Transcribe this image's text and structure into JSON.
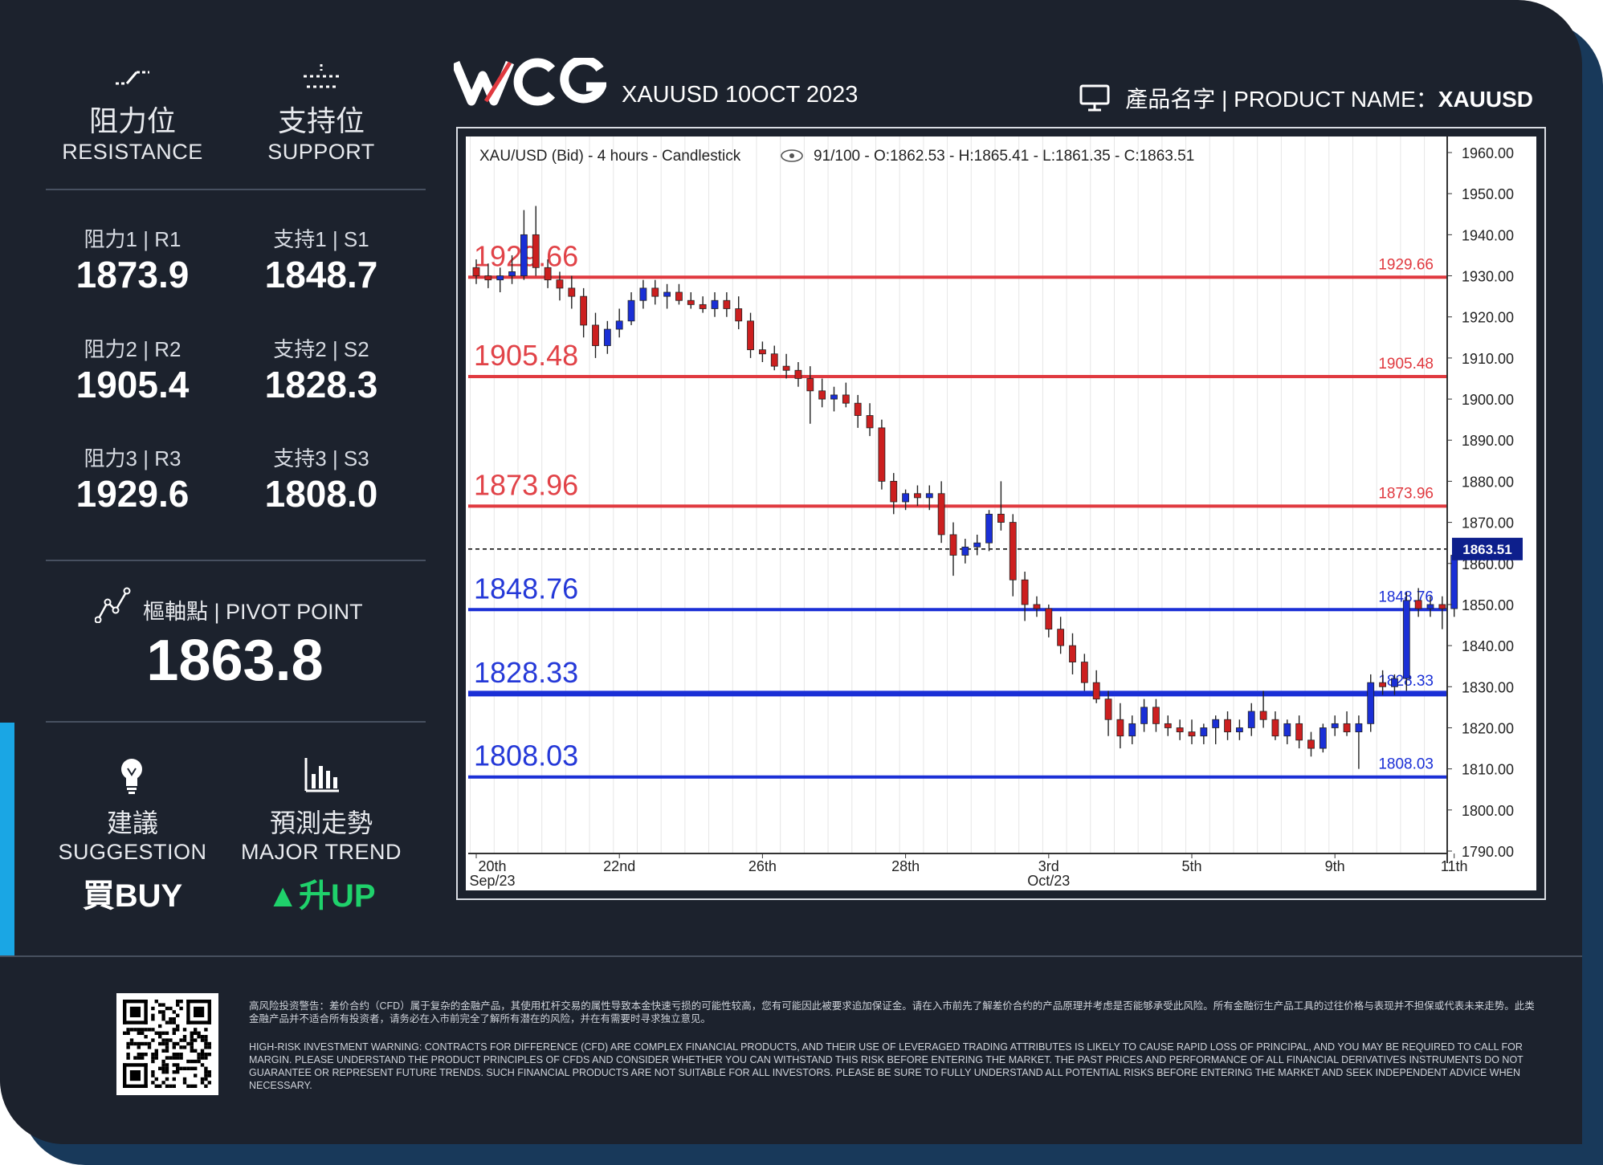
{
  "header": {
    "brand": "WCG",
    "title": "XAUUSD 10OCT 2023",
    "product_zh": "產品名字",
    "product_en": "PRODUCT NAME：",
    "product_value": "XAUUSD"
  },
  "resistance": {
    "label_zh": "阻力位",
    "label_en": "RESISTANCE"
  },
  "support": {
    "label_zh": "支持位",
    "label_en": "SUPPORT"
  },
  "levels": {
    "r1": {
      "label": "阻力1 | R1",
      "value": "1873.9"
    },
    "r2": {
      "label": "阻力2 | R2",
      "value": "1905.4"
    },
    "r3": {
      "label": "阻力3 | R3",
      "value": "1929.6"
    },
    "s1": {
      "label": "支持1 | S1",
      "value": "1848.7"
    },
    "s2": {
      "label": "支持2 | S2",
      "value": "1828.3"
    },
    "s3": {
      "label": "支持3 | S3",
      "value": "1808.0"
    }
  },
  "pivot": {
    "label_zh": "樞軸點",
    "label_en": "PIVOT POINT",
    "sep": "|",
    "value": "1863.8"
  },
  "suggestion": {
    "label_zh": "建議",
    "label_en": "SUGGESTION",
    "value": "買BUY"
  },
  "trend": {
    "label_zh": "預測走勢",
    "label_en": "MAJOR TREND",
    "value": "升UP",
    "color": "#1fd16b"
  },
  "disclaimer": {
    "zh": "高风险投资警告：差价合约（CFD）属于复杂的金融产品，其使用杠杆交易的属性导致本金快速亏损的可能性较高，您有可能因此被要求追加保证金。请在入市前先了解差价合约的产品原理并考虑是否能够承受此风险。所有金融衍生产品工具的过往价格与表现并不担保或代表未来走势。此类金融产品并不适合所有投资者，请务必在入市前完全了解所有潜在的风险，并在有需要时寻求独立意见。",
    "en": "HIGH-RISK INVESTMENT WARNING: CONTRACTS FOR DIFFERENCE (CFD) ARE COMPLEX FINANCIAL PRODUCTS, AND THEIR USE OF LEVERAGED TRADING ATTRIBUTES IS LIKELY TO CAUSE RAPID LOSS OF PRINCIPAL, AND YOU MAY BE REQUIRED TO CALL FOR MARGIN. PLEASE UNDERSTAND THE PRODUCT PRINCIPLES OF CFDS AND CONSIDER WHETHER YOU CAN WITHSTAND THIS RISK BEFORE ENTERING THE MARKET. THE PAST PRICES AND PERFORMANCE OF ALL FINANCIAL DERIVATIVES INSTRUMENTS DO NOT GUARANTEE OR REPRESENT FUTURE TRENDS. SUCH FINANCIAL PRODUCTS ARE NOT SUITABLE FOR ALL INVESTORS. PLEASE BE SURE TO FULLY UNDERSTAND ALL POTENTIAL RISKS BEFORE ENTERING THE MARKET AND SEEK INDEPENDENT ADVICE WHEN NECESSARY."
  },
  "chart_data": {
    "type": "candlestick",
    "title": "XAU/USD (Bid) - 4 hours - Candlestick",
    "ohlc_text": "91/100 - O:1862.53 - H:1865.41 - L:1861.35 - C:1863.51",
    "ylim": [
      1790,
      1960
    ],
    "yticks": [
      "1960.00",
      "1950.00",
      "1940.00",
      "1930.00",
      "1920.00",
      "1910.00",
      "1900.00",
      "1890.00",
      "1880.00",
      "1870.00",
      "1860.00",
      "1850.00",
      "1840.00",
      "1830.00",
      "1820.00",
      "1810.00",
      "1800.00",
      "1790.00"
    ],
    "xticks": [
      {
        "label": "20th",
        "sub": "Sep/23",
        "i": 0
      },
      {
        "label": "22nd",
        "sub": "",
        "i": 12
      },
      {
        "label": "26th",
        "sub": "",
        "i": 24
      },
      {
        "label": "28th",
        "sub": "",
        "i": 36
      },
      {
        "label": "3rd",
        "sub": "Oct/23",
        "i": 48
      },
      {
        "label": "5th",
        "sub": "",
        "i": 60
      },
      {
        "label": "9th",
        "sub": "",
        "i": 72
      },
      {
        "label": "11th",
        "sub": "",
        "i": 82
      }
    ],
    "current_price": "1863.51",
    "current_value": 1863.51,
    "levels": [
      {
        "value": 1929.66,
        "label": "1929.66",
        "kind": "resistance",
        "color": "#e0393f"
      },
      {
        "value": 1905.48,
        "label": "1905.48",
        "kind": "resistance",
        "color": "#e0393f"
      },
      {
        "value": 1873.96,
        "label": "1873.96",
        "kind": "resistance",
        "color": "#e0393f"
      },
      {
        "value": 1848.76,
        "label": "1848.76",
        "kind": "support",
        "color": "#1a2fd6"
      },
      {
        "value": 1828.33,
        "label": "1828.33",
        "kind": "support",
        "color": "#1a2fd6"
      },
      {
        "value": 1808.03,
        "label": "1808.03",
        "kind": "support",
        "color": "#1a2fd6"
      }
    ],
    "candles": [
      [
        1932,
        1934,
        1928,
        1930
      ],
      [
        1930,
        1933,
        1927,
        1929
      ],
      [
        1929,
        1932,
        1926,
        1930
      ],
      [
        1930,
        1935,
        1928,
        1931
      ],
      [
        1930,
        1946,
        1929,
        1940
      ],
      [
        1940,
        1947,
        1930,
        1932
      ],
      [
        1932,
        1934,
        1927,
        1929
      ],
      [
        1929,
        1931,
        1924,
        1927
      ],
      [
        1927,
        1930,
        1922,
        1925
      ],
      [
        1925,
        1927,
        1915,
        1918
      ],
      [
        1918,
        1921,
        1910,
        1913
      ],
      [
        1913,
        1919,
        1911,
        1917
      ],
      [
        1917,
        1922,
        1915,
        1919
      ],
      [
        1919,
        1926,
        1918,
        1924
      ],
      [
        1924,
        1929,
        1922,
        1927
      ],
      [
        1927,
        1929,
        1923,
        1925
      ],
      [
        1925,
        1928,
        1922,
        1926
      ],
      [
        1926,
        1928,
        1923,
        1924
      ],
      [
        1924,
        1926,
        1922,
        1923
      ],
      [
        1923,
        1925,
        1921,
        1922
      ],
      [
        1922,
        1926,
        1920,
        1924
      ],
      [
        1924,
        1926,
        1920,
        1922
      ],
      [
        1922,
        1925,
        1917,
        1919
      ],
      [
        1919,
        1921,
        1910,
        1912
      ],
      [
        1912,
        1914,
        1909,
        1911
      ],
      [
        1911,
        1913,
        1907,
        1908
      ],
      [
        1908,
        1911,
        1905,
        1907
      ],
      [
        1907,
        1909,
        1903,
        1905
      ],
      [
        1905,
        1908,
        1894,
        1902
      ],
      [
        1902,
        1905,
        1898,
        1900
      ],
      [
        1900,
        1903,
        1897,
        1901
      ],
      [
        1901,
        1904,
        1898,
        1899
      ],
      [
        1899,
        1901,
        1893,
        1896
      ],
      [
        1896,
        1899,
        1891,
        1893
      ],
      [
        1893,
        1895,
        1878,
        1880
      ],
      [
        1880,
        1882,
        1872,
        1875
      ],
      [
        1875,
        1878,
        1873,
        1877
      ],
      [
        1877,
        1879,
        1874,
        1876
      ],
      [
        1876,
        1879,
        1873,
        1877
      ],
      [
        1877,
        1880,
        1865,
        1867
      ],
      [
        1867,
        1870,
        1857,
        1862
      ],
      [
        1862,
        1866,
        1860,
        1864
      ],
      [
        1864,
        1867,
        1862,
        1865
      ],
      [
        1865,
        1873,
        1863,
        1872
      ],
      [
        1872,
        1880,
        1868,
        1870
      ],
      [
        1870,
        1872,
        1852,
        1856
      ],
      [
        1856,
        1858,
        1846,
        1850
      ],
      [
        1850,
        1852,
        1847,
        1849
      ],
      [
        1849,
        1850,
        1842,
        1844
      ],
      [
        1844,
        1847,
        1838,
        1840
      ],
      [
        1840,
        1843,
        1833,
        1836
      ],
      [
        1836,
        1838,
        1829,
        1831
      ],
      [
        1831,
        1834,
        1826,
        1827
      ],
      [
        1827,
        1829,
        1818,
        1822
      ],
      [
        1822,
        1826,
        1815,
        1818
      ],
      [
        1818,
        1823,
        1816,
        1821
      ],
      [
        1821,
        1827,
        1819,
        1825
      ],
      [
        1825,
        1827,
        1819,
        1821
      ],
      [
        1821,
        1823,
        1818,
        1820
      ],
      [
        1820,
        1822,
        1817,
        1819
      ],
      [
        1819,
        1822,
        1816,
        1818
      ],
      [
        1818,
        1821,
        1816,
        1820
      ],
      [
        1820,
        1823,
        1816,
        1822
      ],
      [
        1822,
        1824,
        1817,
        1819
      ],
      [
        1819,
        1822,
        1817,
        1820
      ],
      [
        1820,
        1826,
        1818,
        1824
      ],
      [
        1824,
        1829,
        1820,
        1822
      ],
      [
        1822,
        1824,
        1817,
        1818
      ],
      [
        1818,
        1822,
        1816,
        1821
      ],
      [
        1821,
        1823,
        1815,
        1817
      ],
      [
        1817,
        1819,
        1813,
        1815
      ],
      [
        1815,
        1821,
        1814,
        1820
      ],
      [
        1820,
        1823,
        1818,
        1821
      ],
      [
        1821,
        1824,
        1818,
        1819
      ],
      [
        1819,
        1823,
        1810,
        1821
      ],
      [
        1821,
        1833,
        1819,
        1831
      ],
      [
        1831,
        1834,
        1828,
        1830
      ],
      [
        1830,
        1833,
        1828,
        1832
      ],
      [
        1832,
        1853,
        1829,
        1851
      ],
      [
        1851,
        1854,
        1847,
        1849
      ],
      [
        1849,
        1852,
        1847,
        1850
      ],
      [
        1850,
        1852,
        1844,
        1849
      ],
      [
        1849,
        1864,
        1847,
        1862
      ],
      [
        1862,
        1865,
        1860,
        1862
      ],
      [
        1862,
        1865,
        1861,
        1863
      ]
    ]
  }
}
